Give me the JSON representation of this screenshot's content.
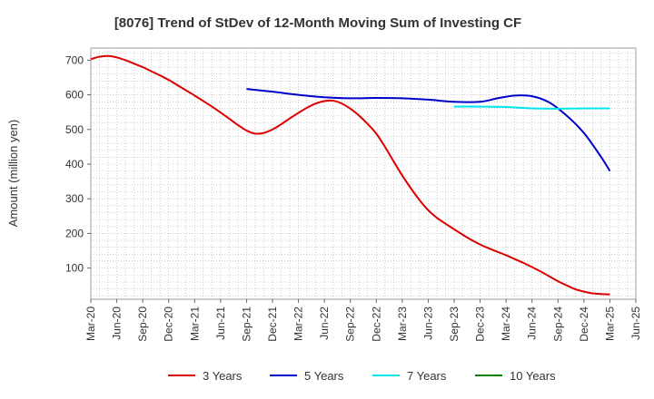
{
  "chart_data": {
    "type": "line",
    "title": "[8076]  Trend of StDev of 12-Month Moving Sum of Investing CF",
    "ylabel": "Amount (million yen)",
    "xlabel": "",
    "ylim": [
      10,
      735
    ],
    "yticks": [
      100,
      200,
      300,
      400,
      500,
      600,
      700
    ],
    "xticks": [
      "Mar-20",
      "Jun-20",
      "Sep-20",
      "Dec-20",
      "Mar-21",
      "Jun-21",
      "Sep-21",
      "Dec-21",
      "Mar-22",
      "Jun-22",
      "Sep-22",
      "Dec-22",
      "Mar-23",
      "Jun-23",
      "Sep-23",
      "Dec-23",
      "Mar-24",
      "Jun-24",
      "Sep-24",
      "Dec-24",
      "Mar-25",
      "Jun-25"
    ],
    "grid": true,
    "legend_position": "bottom",
    "series": [
      {
        "name": "3 Years",
        "color": "#dd0000",
        "x": [
          "Mar-20",
          "Apr-20",
          "May-20",
          "Jun-20",
          "Jul-20",
          "Aug-20",
          "Sep-20",
          "Oct-20",
          "Nov-20",
          "Dec-20",
          "Jan-21",
          "Feb-21",
          "Mar-21",
          "Apr-21",
          "May-21",
          "Jun-21",
          "Jul-21",
          "Aug-21",
          "Sep-21",
          "Oct-21",
          "Nov-21",
          "Dec-21",
          "Jan-22",
          "Feb-22",
          "Mar-22",
          "Apr-22",
          "May-22",
          "Jun-22",
          "Jul-22",
          "Aug-22",
          "Sep-22",
          "Oct-22",
          "Nov-22",
          "Dec-22",
          "Jan-23",
          "Feb-23",
          "Mar-23",
          "Apr-23",
          "May-23",
          "Jun-23",
          "Jul-23",
          "Aug-23",
          "Sep-23",
          "Oct-23",
          "Nov-23",
          "Dec-23",
          "Jan-24",
          "Feb-24",
          "Mar-24",
          "Apr-24",
          "May-24",
          "Jun-24",
          "Jul-24",
          "Aug-24",
          "Sep-24",
          "Oct-24",
          "Nov-24",
          "Dec-24",
          "Jan-25",
          "Feb-25",
          "Mar-25"
        ],
        "values": [
          703,
          710,
          712,
          708,
          700,
          690,
          680,
          668,
          656,
          643,
          628,
          613,
          598,
          582,
          566,
          549,
          531,
          513,
          497,
          488,
          490,
          500,
          515,
          532,
          548,
          563,
          575,
          582,
          583,
          575,
          560,
          540,
          516,
          488,
          450,
          408,
          367,
          330,
          296,
          267,
          245,
          228,
          212,
          196,
          181,
          168,
          157,
          147,
          137,
          126,
          115,
          103,
          90,
          76,
          62,
          50,
          39,
          32,
          27,
          25,
          24
        ]
      },
      {
        "name": "5 Years",
        "color": "#0000cc",
        "x": [
          "Sep-21",
          "Dec-21",
          "Mar-22",
          "Jun-22",
          "Sep-22",
          "Dec-22",
          "Mar-23",
          "Jun-23",
          "Sep-23",
          "Dec-23",
          "Feb-24",
          "Apr-24",
          "Jun-24",
          "Aug-24",
          "Oct-24",
          "Dec-24",
          "Feb-25",
          "Mar-25"
        ],
        "values": [
          617,
          609,
          600,
          593,
          590,
          591,
          590,
          586,
          580,
          580,
          590,
          598,
          596,
          578,
          540,
          490,
          420,
          380
        ]
      },
      {
        "name": "7 Years",
        "color": "#00e5ee",
        "x": [
          "Sep-23",
          "Dec-23",
          "Mar-24",
          "Jun-24",
          "Sep-24",
          "Dec-24",
          "Mar-25"
        ],
        "values": [
          566,
          566,
          565,
          561,
          560,
          561,
          561
        ]
      },
      {
        "name": "10 Years",
        "color": "#008000",
        "x": [],
        "values": []
      }
    ]
  }
}
